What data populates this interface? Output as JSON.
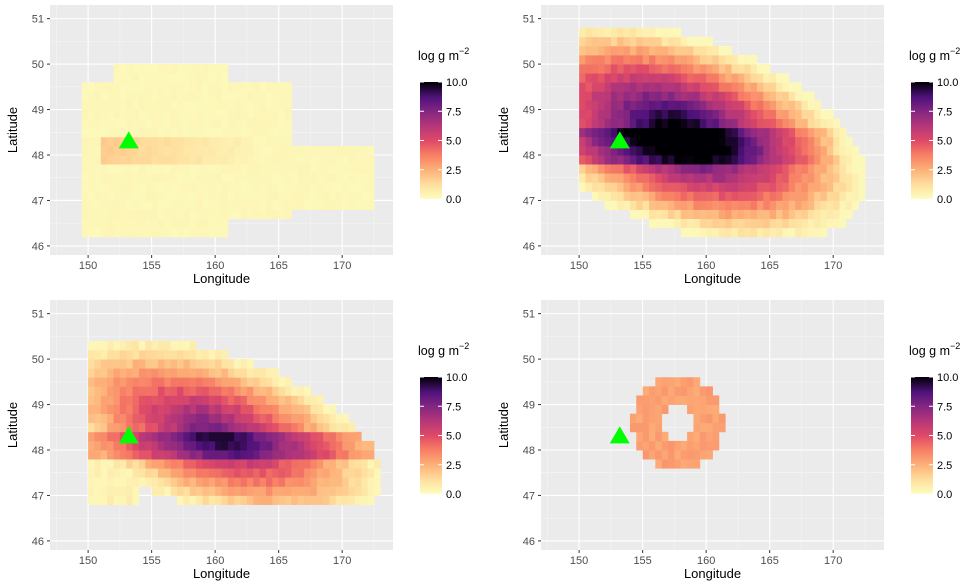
{
  "chart_data": [
    {
      "type": "heatmap",
      "xlabel": "Longitude",
      "ylabel": "Latitude",
      "xlim": [
        147,
        174
      ],
      "ylim": [
        45.8,
        51.3
      ],
      "xticks": [
        150,
        155,
        160,
        165,
        170
      ],
      "yticks": [
        46,
        47,
        48,
        49,
        50,
        51
      ],
      "grid": true,
      "legend": {
        "title": "log g m",
        "title_sup": "−2",
        "ticks": [
          "0.0",
          "2.5",
          "5.0",
          "7.5",
          "10.0"
        ],
        "range": [
          0,
          10
        ],
        "placement": "right"
      },
      "marker": {
        "shape": "triangle",
        "color": "#00ff00",
        "lon": 153.2,
        "lat": 48.3
      },
      "series": [
        {
          "lon": [
            150,
            163
          ],
          "lat": [
            48.1,
            48.3
          ],
          "values": [
            1.5,
            0.2
          ]
        },
        {
          "lon": [
            149,
            172
          ],
          "lat": [
            46.6,
            50.0
          ],
          "values": [
            0.3,
            0.1
          ]
        }
      ]
    },
    {
      "type": "heatmap",
      "xlabel": "Longitude",
      "ylabel": "Latitude",
      "xlim": [
        147,
        174
      ],
      "ylim": [
        45.8,
        51.3
      ],
      "xticks": [
        150,
        155,
        160,
        165,
        170
      ],
      "yticks": [
        46,
        47,
        48,
        49,
        50,
        51
      ],
      "grid": true,
      "legend": {
        "title": "log g m",
        "title_sup": "−2",
        "ticks": [
          "0.0",
          "2.5",
          "5.0",
          "7.5",
          "10.0"
        ],
        "range": [
          0,
          10
        ],
        "placement": "right"
      },
      "marker": {
        "shape": "triangle",
        "color": "#00ff00",
        "lon": 153.2,
        "lat": 48.3
      },
      "series": [
        {
          "lon": [
            153,
            172
          ],
          "lat": [
            47.6,
            49.2
          ],
          "values": [
            9.6,
            5.5
          ]
        },
        {
          "lon": [
            150,
            173
          ],
          "lat": [
            46.4,
            50.8
          ],
          "values": [
            4.0,
            0.8
          ]
        }
      ]
    },
    {
      "type": "heatmap",
      "xlabel": "Longitude",
      "ylabel": "Latitude",
      "xlim": [
        147,
        174
      ],
      "ylim": [
        45.8,
        51.3
      ],
      "xticks": [
        150,
        155,
        160,
        165,
        170
      ],
      "yticks": [
        46,
        47,
        48,
        49,
        50,
        51
      ],
      "grid": true,
      "legend": {
        "title": "log g m",
        "title_sup": "−2",
        "ticks": [
          "0.0",
          "2.5",
          "5.0",
          "7.5",
          "10.0"
        ],
        "range": [
          0,
          10
        ],
        "placement": "right"
      },
      "marker": {
        "shape": "triangle",
        "color": "#00ff00",
        "lon": 153.2,
        "lat": 48.3
      },
      "series": [
        {
          "lon": [
            152,
            170
          ],
          "lat": [
            47.8,
            48.9
          ],
          "values": [
            7.2,
            4.5
          ]
        },
        {
          "lon": [
            150,
            173
          ],
          "lat": [
            46.8,
            50.4
          ],
          "values": [
            3.5,
            0.8
          ]
        }
      ]
    },
    {
      "type": "heatmap",
      "xlabel": "Longitude",
      "ylabel": "Latitude",
      "xlim": [
        147,
        174
      ],
      "ylim": [
        45.8,
        51.3
      ],
      "xticks": [
        150,
        155,
        160,
        165,
        170
      ],
      "yticks": [
        46,
        47,
        48,
        49,
        50,
        51
      ],
      "grid": true,
      "legend": {
        "title": "log g m",
        "title_sup": "−2",
        "ticks": [
          "0.0",
          "2.5",
          "5.0",
          "7.5",
          "10.0"
        ],
        "range": [
          0,
          10
        ],
        "placement": "right"
      },
      "marker": {
        "shape": "triangle",
        "color": "#00ff00",
        "lon": 153.2,
        "lat": 48.3
      },
      "series": [
        {
          "lon": [
            155,
            162
          ],
          "lat": [
            47.6,
            49.5
          ],
          "values": [
            3.5,
            2.5
          ]
        }
      ]
    }
  ]
}
